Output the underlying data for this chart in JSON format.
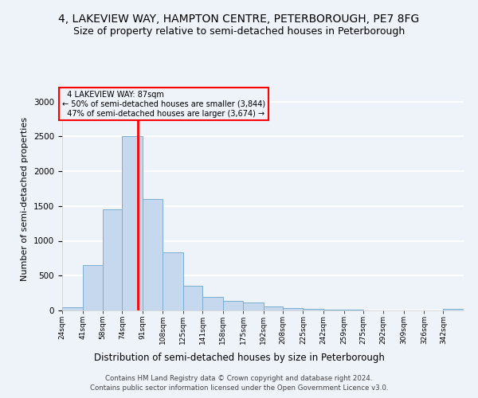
{
  "title1": "4, LAKEVIEW WAY, HAMPTON CENTRE, PETERBOROUGH, PE7 8FG",
  "title2": "Size of property relative to semi-detached houses in Peterborough",
  "xlabel": "Distribution of semi-detached houses by size in Peterborough",
  "ylabel": "Number of semi-detached properties",
  "footnote1": "Contains HM Land Registry data © Crown copyright and database right 2024.",
  "footnote2": "Contains public sector information licensed under the Open Government Licence v3.0.",
  "property_size": 87,
  "property_label": "4 LAKEVIEW WAY: 87sqm",
  "pct_smaller": 50,
  "n_smaller": 3844,
  "pct_larger": 47,
  "n_larger": 3674,
  "bin_edges": [
    24,
    41,
    58,
    74,
    91,
    108,
    125,
    141,
    158,
    175,
    192,
    208,
    225,
    242,
    259,
    275,
    292,
    309,
    326,
    342,
    359
  ],
  "bar_heights": [
    50,
    650,
    1450,
    2500,
    1600,
    840,
    350,
    200,
    135,
    110,
    55,
    30,
    20,
    15,
    10,
    5,
    5,
    2,
    2,
    20
  ],
  "bar_color": "#c5d8ed",
  "bar_edge_color": "#7aaed0",
  "vline_x": 87,
  "vline_color": "red",
  "ylim": [
    0,
    3200
  ],
  "yticks": [
    0,
    500,
    1000,
    1500,
    2000,
    2500,
    3000
  ],
  "annotation_box_color": "red",
  "background_color": "#eef2f9",
  "grid_color": "white",
  "title1_fontsize": 10,
  "title2_fontsize": 9,
  "xlabel_fontsize": 8.5,
  "ylabel_fontsize": 8
}
